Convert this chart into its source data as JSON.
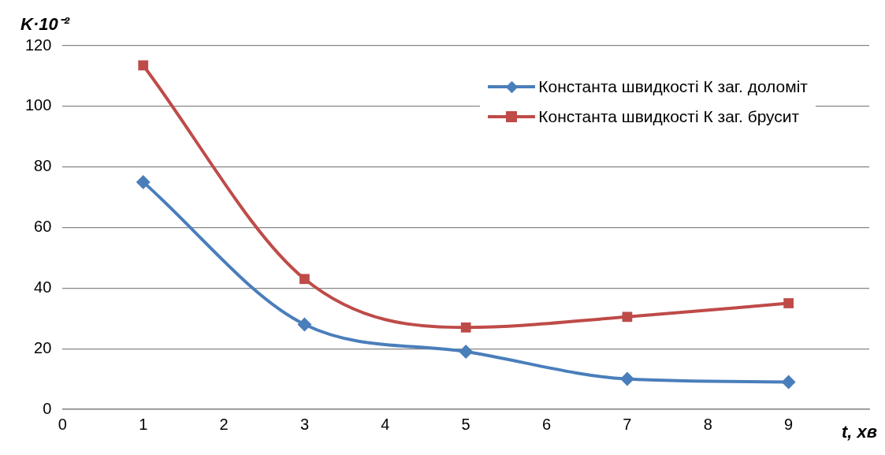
{
  "chart_data": {
    "type": "line",
    "ylabel": "K·10⁻²",
    "xlabel": "t, хв",
    "x": [
      1,
      3,
      5,
      7,
      9
    ],
    "series": [
      {
        "name": "Константа швидкості К заг. доломіт",
        "color": "#4a7ebb",
        "values": [
          75,
          28,
          19,
          10,
          9
        ],
        "marker": "diamond"
      },
      {
        "name": "Константа швидкості К заг. брусит",
        "color": "#be4b48",
        "values": [
          113.5,
          43,
          27,
          30.5,
          35
        ],
        "marker": "square"
      }
    ],
    "xlim": [
      0,
      10
    ],
    "xticks": [
      0,
      1,
      2,
      3,
      4,
      5,
      6,
      7,
      8,
      9
    ],
    "ylim": [
      0,
      120
    ],
    "yticks": [
      0,
      20,
      40,
      60,
      80,
      100,
      120
    ],
    "grid": "y",
    "legend": "top right",
    "line_style": "solid"
  }
}
